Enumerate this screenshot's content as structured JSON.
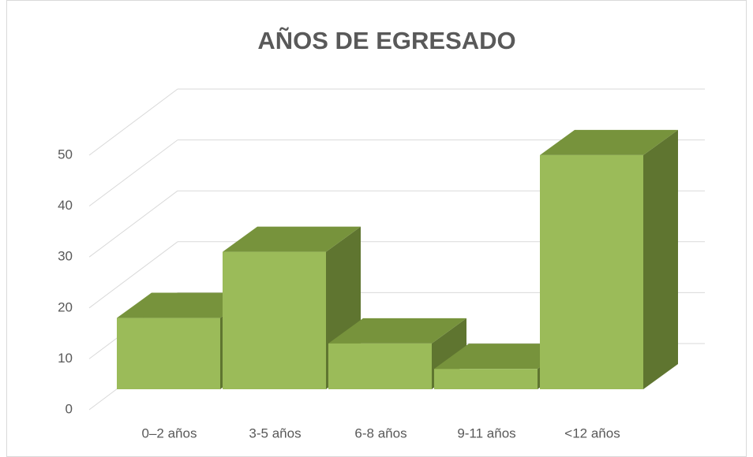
{
  "chart_data": {
    "type": "bar3d",
    "title": "AÑOS DE EGRESADO",
    "categories": [
      "0–2 años",
      "3-5 años",
      "6-8 años",
      "9-11 años",
      "<12 años"
    ],
    "values": [
      14,
      27,
      9,
      4,
      46
    ],
    "color": "#9bbb59",
    "top_color": "#77933c",
    "side_color": "#5f7530",
    "ylim": [
      0,
      50
    ],
    "yticks": [
      0,
      10,
      20,
      30,
      40,
      50
    ],
    "grid": true
  }
}
